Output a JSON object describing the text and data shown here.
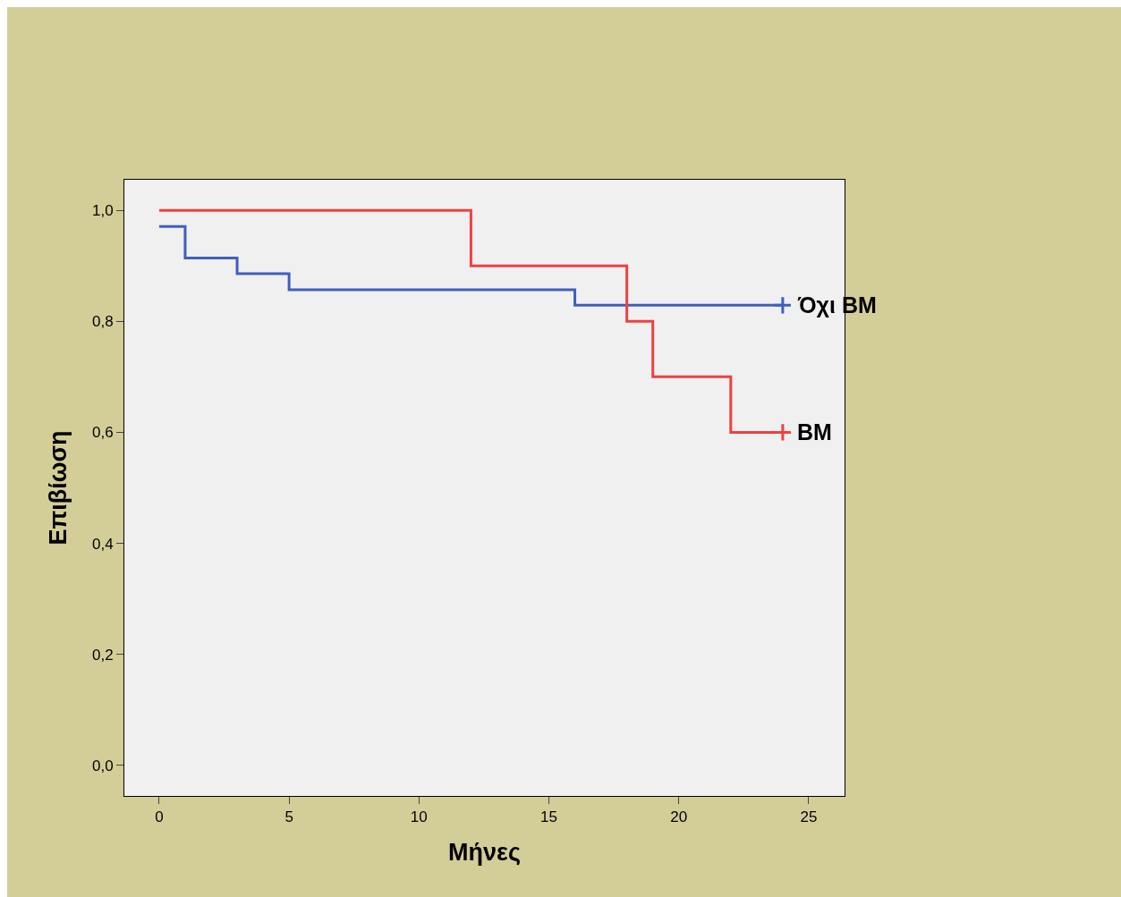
{
  "chart_data": {
    "type": "step",
    "xlabel": "Μήνες",
    "ylabel": "Επιβίωση",
    "xlim": [
      -1.34,
      26.38
    ],
    "xticks": [
      0,
      5,
      10,
      15,
      20,
      25
    ],
    "ylim": [
      -0.055,
      1.055
    ],
    "yticks": [
      {
        "value": 0,
        "label": "0,0"
      },
      {
        "value": 0.2,
        "label": "0,2"
      },
      {
        "value": 0.4,
        "label": "0,4"
      },
      {
        "value": 0.6,
        "label": "0,6"
      },
      {
        "value": 0.8,
        "label": "0,8"
      },
      {
        "value": 1,
        "label": "1,0"
      }
    ],
    "grid": false,
    "legend": false,
    "series": [
      {
        "name": "Όχι BM",
        "color": "#3f5fbf",
        "x": [
          0,
          1,
          3,
          5,
          16,
          24
        ],
        "values": [
          0.971,
          0.914,
          0.886,
          0.857,
          0.829,
          0.829
        ]
      },
      {
        "name": "BM",
        "color": "#f04040",
        "x": [
          0,
          12,
          18,
          19,
          22,
          24
        ],
        "values": [
          1.0,
          0.9,
          0.8,
          0.7,
          0.6,
          0.6
        ]
      },
      {
        "type": "scatter",
        "marker": "cross",
        "colors": [
          "#3f5fbf",
          "#f04040"
        ],
        "x": [
          24,
          24
        ],
        "values": [
          0.829,
          0.6
        ]
      }
    ]
  }
}
